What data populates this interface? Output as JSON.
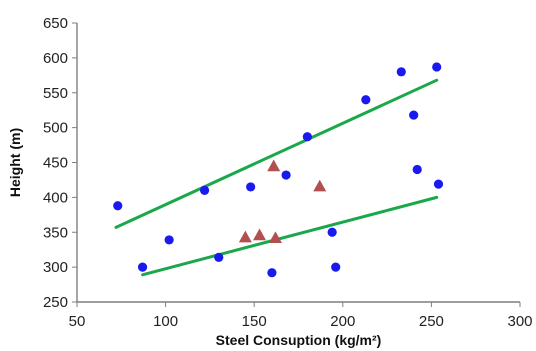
{
  "chart_data": {
    "type": "scatter",
    "xlabel": "Steel Consuption (kg/m²)",
    "ylabel": "Height (m)",
    "xlim": [
      50,
      300
    ],
    "ylim": [
      250,
      650
    ],
    "xticks": [
      50,
      100,
      150,
      200,
      250,
      300
    ],
    "yticks": [
      250,
      300,
      350,
      400,
      450,
      500,
      550,
      600,
      650
    ],
    "grid": false,
    "legend": "none",
    "series": [
      {
        "marker": "circle",
        "color": "#1a1aee",
        "points": [
          [
            73,
            388
          ],
          [
            87,
            300
          ],
          [
            102,
            339
          ],
          [
            122,
            410
          ],
          [
            130,
            314
          ],
          [
            148,
            415
          ],
          [
            160,
            292
          ],
          [
            168,
            432
          ],
          [
            180,
            487
          ],
          [
            194,
            350
          ],
          [
            196,
            300
          ],
          [
            213,
            540
          ],
          [
            233,
            580
          ],
          [
            240,
            518
          ],
          [
            242,
            440
          ],
          [
            253,
            587
          ],
          [
            254,
            419
          ]
        ]
      },
      {
        "marker": "triangle",
        "color": "#b05050",
        "points": [
          [
            145,
            343
          ],
          [
            153,
            346
          ],
          [
            161,
            445
          ],
          [
            162,
            342
          ],
          [
            187,
            416
          ]
        ]
      }
    ],
    "trendlines": [
      {
        "color": "#1aa84a",
        "points": [
          [
            72,
            357
          ],
          [
            253,
            568
          ]
        ]
      },
      {
        "color": "#1aa84a",
        "points": [
          [
            87,
            289
          ],
          [
            253,
            400
          ]
        ]
      }
    ]
  }
}
